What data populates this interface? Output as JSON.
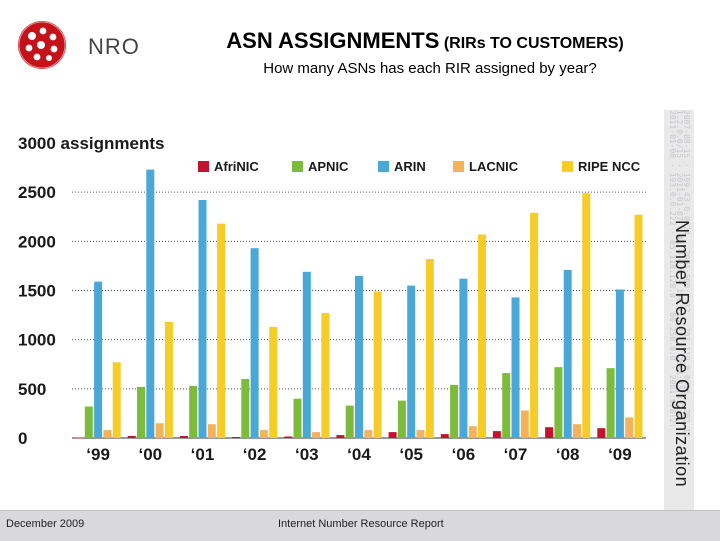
{
  "header": {
    "logo_text": "NRO",
    "title_main": "ASN ASSIGNMENTS",
    "title_paren": "(RIRs TO CUSTOMERS)",
    "subtitle": "How many ASNs has each RIR assigned by year?"
  },
  "side": {
    "org_text": "Number Resource Organization",
    "noise": [
      "2011-01-08 · 193.0.0.222 · 85.118.128.0 · 80.250.0.0 · 2001:678:2:",
      "1.2.0.0/15 · 2011-01-07 · 41.0.0.0 · 196.216.2.1 · 2001:43f8:2:0",
      "2007-08-15 · 199.43.0.0/24 · 2001:500::/32 · 203.119.0.0/16 · 202.12"
    ]
  },
  "footer": {
    "date": "December 2009",
    "report": "Internet Number Resource Report"
  },
  "colors": {
    "AfriNIC": "#c0152f",
    "APNIC": "#7dbb3c",
    "ARIN": "#4aa8d8",
    "LACNIC": "#f2b35a",
    "RIPE NCC": "#f5cc28"
  },
  "chart_data": {
    "type": "bar",
    "title": "ASN ASSIGNMENTS (RIRs TO CUSTOMERS)",
    "ylabel": "assignments",
    "y_top_label": "3000 assignments",
    "ylim": [
      0,
      3000
    ],
    "yticks": [
      0,
      500,
      1000,
      1500,
      2000,
      2500,
      3000
    ],
    "grid": true,
    "legend_position": "top-right",
    "categories": [
      "‘99",
      "‘00",
      "‘01",
      "‘02",
      "‘03",
      "‘04",
      "‘05",
      "‘06",
      "‘07",
      "‘08",
      "‘09"
    ],
    "series": [
      {
        "name": "AfriNIC",
        "values": [
          5,
          20,
          20,
          10,
          15,
          30,
          60,
          40,
          70,
          110,
          100
        ]
      },
      {
        "name": "APNIC",
        "values": [
          320,
          520,
          530,
          600,
          400,
          330,
          380,
          540,
          660,
          720,
          710
        ]
      },
      {
        "name": "ARIN",
        "values": [
          1590,
          2730,
          2420,
          1930,
          1690,
          1650,
          1550,
          1620,
          1430,
          1710,
          1510
        ]
      },
      {
        "name": "LACNIC",
        "values": [
          80,
          150,
          140,
          80,
          60,
          80,
          80,
          120,
          280,
          140,
          210
        ]
      },
      {
        "name": "RIPE NCC",
        "values": [
          770,
          1180,
          2180,
          1130,
          1270,
          1490,
          1820,
          2070,
          2290,
          2490,
          2270
        ]
      }
    ]
  }
}
